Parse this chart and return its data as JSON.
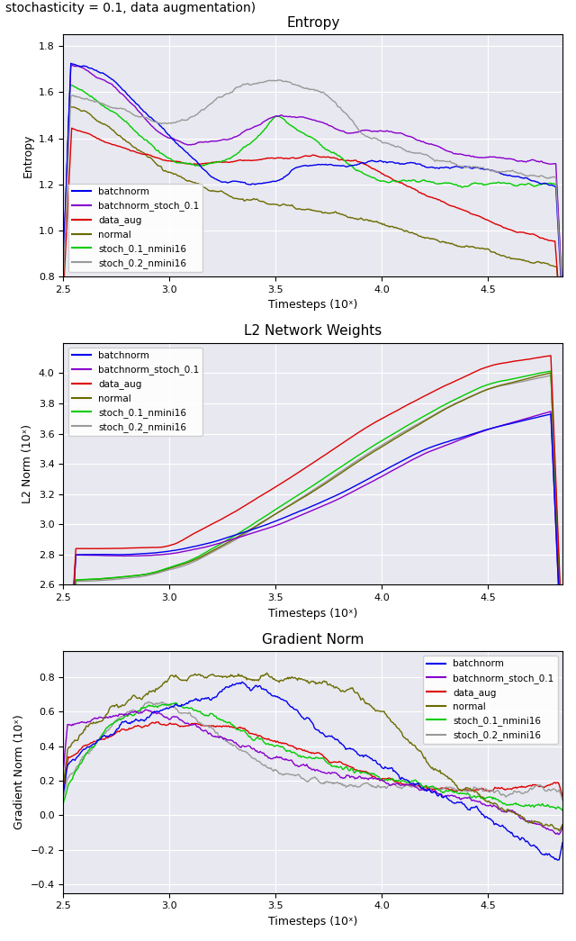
{
  "title_text": "stochasticity = 0.1, data augmentation)",
  "subplot_titles": [
    "Entropy",
    "L2 Network Weights",
    "Gradient Norm"
  ],
  "xlim": [
    2.5,
    4.85
  ],
  "xticks": [
    2.5,
    3.0,
    3.5,
    4.0,
    4.5
  ],
  "xlabel": "Timesteps (10ˣ)",
  "colors": {
    "batchnorm": "#0000ee",
    "batchnorm_stoch_0.1": "#8800cc",
    "data_aug": "#dd0000",
    "normal": "#6b6b00",
    "stoch_0.1_nmini16": "#00cc00",
    "stoch_0.2_nmini16": "#999999"
  },
  "legend_labels": [
    "batchnorm",
    "batchnorm_stoch_0.1",
    "data_aug",
    "normal",
    "stoch_0.1_nmini16",
    "stoch_0.2_nmini16"
  ],
  "bg_color": "#e8e8f0",
  "entropy_ylim": [
    0.8,
    1.85
  ],
  "entropy_yticks": [
    0.8,
    1.0,
    1.2,
    1.4,
    1.6,
    1.8
  ],
  "l2_ylim": [
    2.6,
    4.2
  ],
  "l2_yticks": [
    2.6,
    2.8,
    3.0,
    3.2,
    3.4,
    3.6,
    3.8,
    4.0
  ],
  "grad_ylim": [
    -0.45,
    0.95
  ],
  "grad_yticks": [
    -0.4,
    -0.2,
    0.0,
    0.2,
    0.4,
    0.6,
    0.8
  ],
  "ylabel_entropy": "Entropy",
  "ylabel_l2": "L2 Norm (10ˣ)",
  "ylabel_grad": "Gradient Norm (10ˣ)"
}
